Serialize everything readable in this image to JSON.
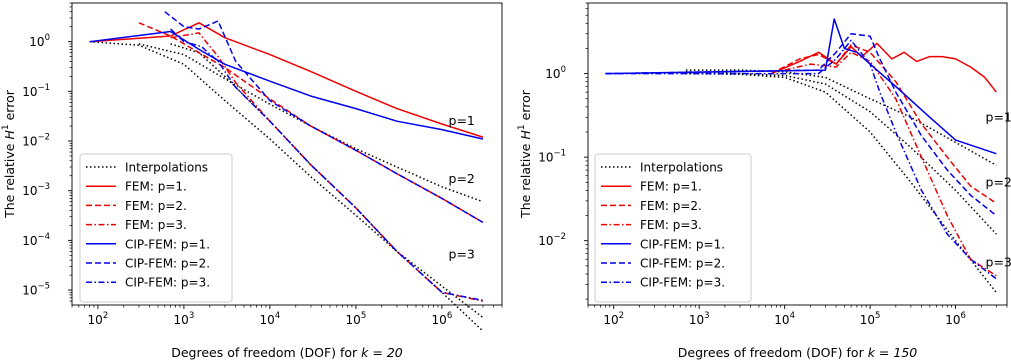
{
  "chart_data": [
    {
      "type": "line",
      "panel": "left",
      "xscale": "log",
      "yscale": "log",
      "xlim": [
        50,
        5000000
      ],
      "ylim": [
        5e-06,
        6
      ],
      "xticks": [
        {
          "v": 100,
          "b": "10",
          "e": "2"
        },
        {
          "v": 1000,
          "b": "10",
          "e": "3"
        },
        {
          "v": 10000,
          "b": "10",
          "e": "4"
        },
        {
          "v": 100000,
          "b": "10",
          "e": "5"
        },
        {
          "v": 1000000,
          "b": "10",
          "e": "6"
        }
      ],
      "yticks": [
        {
          "v": 1e-05,
          "b": "10",
          "e": "−5"
        },
        {
          "v": 0.0001,
          "b": "10",
          "e": "−4"
        },
        {
          "v": 0.001,
          "b": "10",
          "e": "−3"
        },
        {
          "v": 0.01,
          "b": "10",
          "e": "−2"
        },
        {
          "v": 0.1,
          "b": "10",
          "e": "−1"
        },
        {
          "v": 1,
          "b": "10",
          "e": "0"
        }
      ],
      "xlabel": "Degrees of freedom (DOF) for ",
      "xlabel_math": "k = 20",
      "ylabel": "The relative ",
      "ylabel_math": "H",
      "ylabel_sup": "1",
      "ylabel_tail": " error",
      "annotations": [
        {
          "text": "p=1",
          "x": 1700000,
          "y": 0.025
        },
        {
          "text": "p=2",
          "x": 1700000,
          "y": 0.0017
        },
        {
          "text": "p=3",
          "x": 1700000,
          "y": 5.2e-05
        }
      ],
      "legend_position": "lower left",
      "series": [
        {
          "name": "Interpolations",
          "color": "#000000",
          "dash": "dot",
          "x": [
            300,
            1000,
            3000,
            10000,
            30000,
            100000,
            300000,
            1000000,
            3000000
          ],
          "y": [
            0.9,
            0.55,
            0.18,
            0.055,
            0.02,
            0.007,
            0.003,
            0.0012,
            0.0006
          ]
        },
        {
          "name": "Interpolations",
          "color": "#000000",
          "dash": "dot",
          "x": [
            80,
            300,
            1000,
            3000,
            10000,
            30000,
            100000,
            300000,
            1000000,
            3000000
          ],
          "y": [
            1,
            0.85,
            0.35,
            0.065,
            0.011,
            0.0019,
            0.00032,
            6e-05,
            1.2e-05,
            2.8e-06
          ]
        },
        {
          "name": "Interpolations",
          "color": "#000000",
          "dash": "dot",
          "x": [
            700,
            1500,
            3000,
            10000,
            30000,
            100000,
            300000,
            1000000,
            3000000
          ],
          "y": [
            0.9,
            0.6,
            0.2,
            0.025,
            0.0033,
            0.00045,
            6e-05,
            9e-06,
            1.5e-06
          ]
        },
        {
          "name": "FEM: p=1.",
          "color": "#ee0000",
          "dash": "solid",
          "x": [
            80,
            700,
            1500,
            3000,
            10000,
            30000,
            100000,
            300000,
            1000000,
            3000000
          ],
          "y": [
            1,
            1.3,
            2.4,
            1.2,
            0.55,
            0.25,
            0.1,
            0.045,
            0.022,
            0.012
          ]
        },
        {
          "name": "FEM: p=2.",
          "color": "#ee0000",
          "dash": "dash",
          "x": [
            300,
            700,
            1500,
            3000,
            10000,
            30000,
            100000,
            300000,
            1000000,
            3000000
          ],
          "y": [
            2.4,
            1.3,
            0.6,
            0.3,
            0.07,
            0.02,
            0.0065,
            0.0022,
            0.0007,
            0.00023
          ]
        },
        {
          "name": "FEM: p=3.",
          "color": "#ee0000",
          "dash": "dashdot",
          "x": [
            700,
            1500,
            2500,
            4000,
            10000,
            30000,
            100000,
            300000,
            1000000,
            3000000
          ],
          "y": [
            1.2,
            1.5,
            0.5,
            0.15,
            0.025,
            0.0033,
            0.00045,
            6e-05,
            9e-06,
            6e-06
          ]
        },
        {
          "name": "CIP-FEM: p=1.",
          "color": "#0000ee",
          "dash": "solid",
          "x": [
            80,
            700,
            1500,
            3000,
            10000,
            30000,
            100000,
            300000,
            1000000,
            3000000
          ],
          "y": [
            1,
            1.6,
            0.7,
            0.35,
            0.16,
            0.08,
            0.045,
            0.025,
            0.017,
            0.011
          ]
        },
        {
          "name": "CIP-FEM: p=2.",
          "color": "#0000ee",
          "dash": "dash",
          "x": [
            600,
            1000,
            1500,
            2500,
            4000,
            10000,
            30000,
            100000,
            300000,
            1000000,
            3000000
          ],
          "y": [
            4,
            2,
            1.8,
            2.6,
            0.4,
            0.065,
            0.02,
            0.0065,
            0.0022,
            0.0007,
            0.00023
          ]
        },
        {
          "name": "CIP-FEM: p=3.",
          "color": "#0000ee",
          "dash": "dashdot",
          "x": [
            700,
            1000,
            1600,
            2500,
            4000,
            10000,
            30000,
            100000,
            300000,
            1000000,
            3000000
          ],
          "y": [
            1.8,
            1.0,
            0.8,
            0.4,
            0.12,
            0.025,
            0.0033,
            0.00045,
            6e-05,
            9e-06,
            6.2e-06
          ]
        }
      ]
    },
    {
      "type": "line",
      "panel": "right",
      "xscale": "log",
      "yscale": "log",
      "xlim": [
        50,
        4000000
      ],
      "ylim": [
        0.0017,
        7
      ],
      "xticks": [
        {
          "v": 100,
          "b": "10",
          "e": "2"
        },
        {
          "v": 1000,
          "b": "10",
          "e": "3"
        },
        {
          "v": 10000,
          "b": "10",
          "e": "4"
        },
        {
          "v": 100000,
          "b": "10",
          "e": "5"
        },
        {
          "v": 1000000,
          "b": "10",
          "e": "6"
        }
      ],
      "yticks": [
        {
          "v": 0.01,
          "b": "10",
          "e": "−2"
        },
        {
          "v": 0.1,
          "b": "10",
          "e": "−1"
        },
        {
          "v": 1,
          "b": "10",
          "e": "0"
        }
      ],
      "xlabel": "Degrees of freedom (DOF) for ",
      "xlabel_math": "k = 150",
      "ylabel": "The relative ",
      "ylabel_math": "H",
      "ylabel_sup": "1",
      "ylabel_tail": " error",
      "annotations": [
        {
          "text": "p=1",
          "x": 3200000,
          "y": 0.3
        },
        {
          "text": "p=2",
          "x": 3200000,
          "y": 0.05
        },
        {
          "text": "p=3",
          "x": 3200000,
          "y": 0.0055
        }
      ],
      "legend_position": "lower left",
      "series": [
        {
          "name": "Interpolations",
          "color": "#000000",
          "dash": "dot",
          "x": [
            700,
            3000,
            10000,
            30000,
            100000,
            300000,
            1000000,
            3000000
          ],
          "y": [
            1.1,
            1.1,
            1.05,
            0.9,
            0.5,
            0.3,
            0.15,
            0.08
          ]
        },
        {
          "name": "Interpolations",
          "color": "#000000",
          "dash": "dot",
          "x": [
            700,
            3000,
            10000,
            30000,
            100000,
            300000,
            1000000,
            3000000
          ],
          "y": [
            1.05,
            1.0,
            0.95,
            0.75,
            0.35,
            0.13,
            0.04,
            0.012
          ]
        },
        {
          "name": "Interpolations",
          "color": "#000000",
          "dash": "dot",
          "x": [
            700,
            3000,
            10000,
            30000,
            100000,
            300000,
            1000000,
            3000000
          ],
          "y": [
            1.0,
            0.98,
            0.9,
            0.6,
            0.2,
            0.05,
            0.01,
            0.0024
          ]
        },
        {
          "name": "FEM: p=1.",
          "color": "#ee0000",
          "dash": "solid",
          "x": [
            7000,
            15000,
            25000,
            40000,
            60000,
            80000,
            120000,
            180000,
            250000,
            350000,
            500000,
            700000,
            1000000,
            1500000,
            2200000,
            3000000
          ],
          "y": [
            1.0,
            1.4,
            1.8,
            1.3,
            2.1,
            1.6,
            2.3,
            1.5,
            1.8,
            1.4,
            1.6,
            1.6,
            1.5,
            1.2,
            0.9,
            0.6
          ]
        },
        {
          "name": "FEM: p=2.",
          "color": "#ee0000",
          "dash": "dash",
          "x": [
            7000,
            15000,
            25000,
            40000,
            60000,
            100000,
            200000,
            400000,
            800000,
            1500000,
            3000000
          ],
          "y": [
            1.0,
            1.5,
            1.7,
            1.3,
            2.2,
            1.8,
            0.8,
            0.25,
            0.1,
            0.045,
            0.028
          ]
        },
        {
          "name": "FEM: p=3.",
          "color": "#ee0000",
          "dash": "dashdot",
          "x": [
            10000,
            20000,
            40000,
            60000,
            100000,
            200000,
            400000,
            800000,
            1500000,
            3000000
          ],
          "y": [
            1.1,
            1.3,
            1.2,
            1.8,
            1.4,
            0.5,
            0.1,
            0.02,
            0.006,
            0.0038
          ]
        },
        {
          "name": "CIP-FEM: p=1.",
          "color": "#0000ee",
          "dash": "solid",
          "x": [
            80,
            30000,
            38000,
            50000,
            70000,
            100000,
            200000,
            500000,
            1000000,
            3000000
          ],
          "y": [
            1,
            1.1,
            4.5,
            2,
            1.8,
            1.3,
            0.7,
            0.3,
            0.16,
            0.11
          ]
        },
        {
          "name": "CIP-FEM: p=2.",
          "color": "#0000ee",
          "dash": "dash",
          "x": [
            80,
            25000,
            40000,
            60000,
            100000,
            130000,
            200000,
            400000,
            800000,
            1500000,
            3000000
          ],
          "y": [
            1,
            1.1,
            1.8,
            3,
            2.8,
            1.5,
            0.6,
            0.18,
            0.07,
            0.035,
            0.02
          ]
        },
        {
          "name": "CIP-FEM: p=3.",
          "color": "#0000ee",
          "dash": "dashdot",
          "x": [
            80,
            25000,
            40000,
            60000,
            100000,
            130000,
            200000,
            400000,
            800000,
            1500000,
            3000000
          ],
          "y": [
            1,
            1.0,
            1.5,
            2.5,
            1.3,
            0.6,
            0.2,
            0.04,
            0.012,
            0.006,
            0.0035
          ]
        }
      ]
    }
  ]
}
